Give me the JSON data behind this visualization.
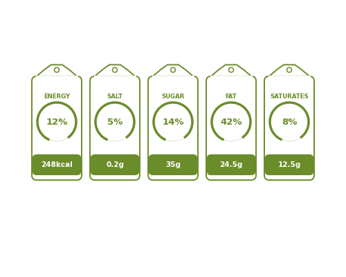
{
  "background_color": "#ffffff",
  "label_color": "#6b8c2a",
  "labels": [
    {
      "title": "ENERGY",
      "percent": "12%",
      "amount": "248kcal",
      "arc_pct": 0.12
    },
    {
      "title": "SALT",
      "percent": "5%",
      "amount": "0.2g",
      "arc_pct": 0.05
    },
    {
      "title": "SUGAR",
      "percent": "14%",
      "amount": "35g",
      "arc_pct": 0.14
    },
    {
      "title": "FAT",
      "percent": "42%",
      "amount": "24.5g",
      "arc_pct": 0.42
    },
    {
      "title": "SATURATES",
      "percent": "8%",
      "amount": "12.5g",
      "arc_pct": 0.08
    }
  ],
  "fig_w": 5.0,
  "fig_h": 4.0,
  "dpi": 100,
  "color": "#6b8c2a",
  "tag_lw": 1.4,
  "arc_lw": 2.5
}
